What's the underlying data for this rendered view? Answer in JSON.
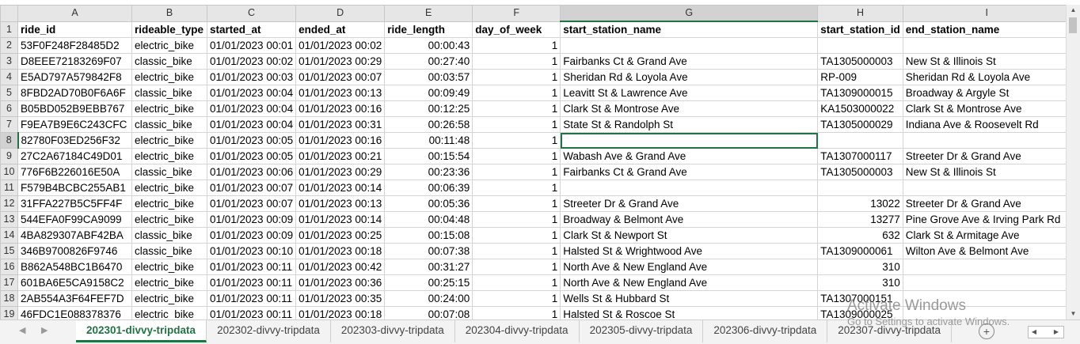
{
  "columns": [
    "A",
    "B",
    "C",
    "D",
    "E",
    "F",
    "G",
    "H",
    "I"
  ],
  "header_row": [
    "ride_id",
    "rideable_type",
    "started_at",
    "ended_at",
    "ride_length",
    "day_of_week",
    "start_station_name",
    "start_station_id",
    "end_station_name"
  ],
  "rows": [
    [
      "53F0F248F28485D2",
      "electric_bike",
      "01/01/2023 00:01",
      "01/01/2023 00:02",
      "00:00:43",
      "1",
      "",
      "",
      ""
    ],
    [
      "D8EEE72183269F07",
      "classic_bike",
      "01/01/2023 00:02",
      "01/01/2023 00:29",
      "00:27:40",
      "1",
      "Fairbanks Ct & Grand Ave",
      "TA1305000003",
      "New St & Illinois St"
    ],
    [
      "E5AD797A579842F8",
      "electric_bike",
      "01/01/2023 00:03",
      "01/01/2023 00:07",
      "00:03:57",
      "1",
      "Sheridan Rd & Loyola Ave",
      "RP-009",
      "Sheridan Rd & Loyola Ave"
    ],
    [
      "8FBD2AD70B0F6A6F",
      "classic_bike",
      "01/01/2023 00:04",
      "01/01/2023 00:13",
      "00:09:49",
      "1",
      "Leavitt St & Lawrence Ave",
      "TA1309000015",
      "Broadway & Argyle St"
    ],
    [
      "B05BD052B9EBB767",
      "electric_bike",
      "01/01/2023 00:04",
      "01/01/2023 00:16",
      "00:12:25",
      "1",
      "Clark St & Montrose Ave",
      "KA1503000022",
      "Clark St & Montrose Ave"
    ],
    [
      "F9EA7B9E6C243CFC",
      "classic_bike",
      "01/01/2023 00:04",
      "01/01/2023 00:31",
      "00:26:58",
      "1",
      "State St & Randolph St",
      "TA1305000029",
      "Indiana Ave & Roosevelt Rd"
    ],
    [
      "82780F03ED256F32",
      "electric_bike",
      "01/01/2023 00:05",
      "01/01/2023 00:16",
      "00:11:48",
      "1",
      "",
      "",
      ""
    ],
    [
      "27C2A67184C49D01",
      "electric_bike",
      "01/01/2023 00:05",
      "01/01/2023 00:21",
      "00:15:54",
      "1",
      "Wabash Ave & Grand Ave",
      "TA1307000117",
      "Streeter Dr & Grand Ave"
    ],
    [
      "776F6B226016E50A",
      "classic_bike",
      "01/01/2023 00:06",
      "01/01/2023 00:29",
      "00:23:36",
      "1",
      "Fairbanks Ct & Grand Ave",
      "TA1305000003",
      "New St & Illinois St"
    ],
    [
      "F579B4BCBC255AB1",
      "electric_bike",
      "01/01/2023 00:07",
      "01/01/2023 00:14",
      "00:06:39",
      "1",
      "",
      "",
      ""
    ],
    [
      "31FFA227B5C5FF4F",
      "electric_bike",
      "01/01/2023 00:07",
      "01/01/2023 00:13",
      "00:05:36",
      "1",
      "Streeter Dr & Grand Ave",
      "13022",
      "Streeter Dr & Grand Ave"
    ],
    [
      "544EFA0F99CA9099",
      "electric_bike",
      "01/01/2023 00:09",
      "01/01/2023 00:14",
      "00:04:48",
      "1",
      "Broadway & Belmont Ave",
      "13277",
      "Pine Grove Ave & Irving Park Rd"
    ],
    [
      "4BA829307ABF42BA",
      "classic_bike",
      "01/01/2023 00:09",
      "01/01/2023 00:25",
      "00:15:08",
      "1",
      "Clark St & Newport St",
      "632",
      "Clark St & Armitage Ave"
    ],
    [
      "346B9700826F9746",
      "classic_bike",
      "01/01/2023 00:10",
      "01/01/2023 00:18",
      "00:07:38",
      "1",
      "Halsted St & Wrightwood Ave",
      "TA1309000061",
      "Wilton Ave & Belmont Ave"
    ],
    [
      "B862A548BC1B6470",
      "electric_bike",
      "01/01/2023 00:11",
      "01/01/2023 00:42",
      "00:31:27",
      "1",
      "North Ave & New England Ave",
      "310",
      ""
    ],
    [
      "601BA6E5CA9158C2",
      "electric_bike",
      "01/01/2023 00:11",
      "01/01/2023 00:36",
      "00:25:15",
      "1",
      "North Ave & New England Ave",
      "310",
      ""
    ],
    [
      "2AB554A3F64FEF7D",
      "electric_bike",
      "01/01/2023 00:11",
      "01/01/2023 00:35",
      "00:24:00",
      "1",
      "Wells St & Hubbard St",
      "TA1307000151",
      ""
    ],
    [
      "46FDC1E088378376",
      "electric_bike",
      "01/01/2023 00:11",
      "01/01/2023 00:18",
      "00:07:08",
      "1",
      "Halsted St & Roscoe St",
      "TA1309000025",
      ""
    ]
  ],
  "active_cell": "G8",
  "sheet_tabs": [
    "202301-divvy-tripdata",
    "202302-divvy-tripdata",
    "202303-divvy-tripdata",
    "202304-divvy-tripdata",
    "202305-divvy-tripdata",
    "202306-divvy-tripdata",
    "202307-divvy-tripdata"
  ],
  "active_tab": "202301-divvy-tripdata",
  "watermark": {
    "title": "Activate Windows",
    "subtitle": "Go to Settings to activate Windows."
  },
  "colors": {
    "accent": "#217346",
    "header_bg": "#e6e6e6",
    "grid": "#d4d4d4"
  }
}
